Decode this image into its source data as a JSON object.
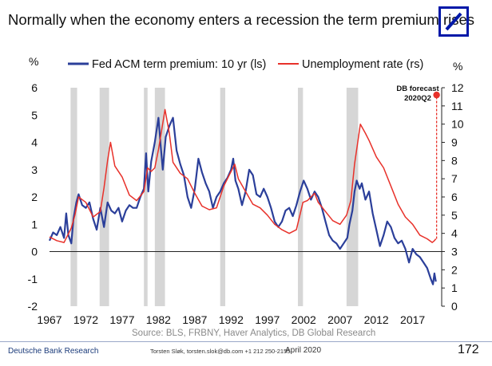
{
  "header": {
    "title": "Normally when the economy enters a recession the term premium rises"
  },
  "chart_data": {
    "type": "line",
    "left_axis": {
      "label": "%",
      "min": -2,
      "max": 6,
      "ticks": [
        "6",
        "5",
        "4",
        "3",
        "2",
        "1",
        "0",
        "-1",
        "-2"
      ]
    },
    "right_axis": {
      "label": "%",
      "min": 0,
      "max": 12,
      "ticks": [
        "12",
        "11",
        "10",
        "9",
        "8",
        "7",
        "6",
        "5",
        "4",
        "3",
        "2",
        "1",
        "0"
      ]
    },
    "x_axis": {
      "min": 1967,
      "max": 2021,
      "ticks": [
        "1967",
        "1972",
        "1977",
        "1982",
        "1987",
        "1992",
        "1997",
        "2002",
        "2007",
        "2012",
        "2017"
      ]
    },
    "recessions": [
      [
        1969.9,
        1970.8
      ],
      [
        1973.9,
        1975.2
      ],
      [
        1980.0,
        1980.5
      ],
      [
        1981.5,
        1982.9
      ],
      [
        1990.5,
        1991.2
      ],
      [
        2001.2,
        2001.9
      ],
      [
        2007.9,
        2009.5
      ]
    ],
    "series": [
      {
        "name": "Fed ACM term premium: 10 yr (ls)",
        "axis": "left",
        "color": "#2b3f9a",
        "points": [
          [
            1967,
            0.4
          ],
          [
            1967.5,
            0.7
          ],
          [
            1968,
            0.6
          ],
          [
            1968.5,
            0.9
          ],
          [
            1969,
            0.5
          ],
          [
            1969.3,
            1.4
          ],
          [
            1969.6,
            0.6
          ],
          [
            1970,
            0.3
          ],
          [
            1970.3,
            1.2
          ],
          [
            1970.7,
            1.8
          ],
          [
            1971,
            2.1
          ],
          [
            1971.5,
            1.7
          ],
          [
            1972,
            1.6
          ],
          [
            1972.5,
            1.8
          ],
          [
            1973,
            1.2
          ],
          [
            1973.5,
            0.8
          ],
          [
            1974,
            1.6
          ],
          [
            1974.5,
            0.9
          ],
          [
            1975,
            1.8
          ],
          [
            1975.5,
            1.5
          ],
          [
            1976,
            1.4
          ],
          [
            1976.5,
            1.6
          ],
          [
            1977,
            1.1
          ],
          [
            1977.5,
            1.5
          ],
          [
            1978,
            1.7
          ],
          [
            1978.5,
            1.6
          ],
          [
            1979,
            1.6
          ],
          [
            1979.5,
            2.0
          ],
          [
            1980,
            2.3
          ],
          [
            1980.3,
            3.6
          ],
          [
            1980.6,
            2.2
          ],
          [
            1981,
            3.3
          ],
          [
            1981.5,
            4.0
          ],
          [
            1982,
            4.9
          ],
          [
            1982.3,
            3.9
          ],
          [
            1982.6,
            3.0
          ],
          [
            1983,
            4.2
          ],
          [
            1983.5,
            4.6
          ],
          [
            1984,
            4.9
          ],
          [
            1984.5,
            3.7
          ],
          [
            1985,
            3.2
          ],
          [
            1985.5,
            2.8
          ],
          [
            1986,
            2.0
          ],
          [
            1986.5,
            1.6
          ],
          [
            1987,
            2.3
          ],
          [
            1987.5,
            3.4
          ],
          [
            1988,
            2.9
          ],
          [
            1988.5,
            2.5
          ],
          [
            1989,
            2.2
          ],
          [
            1989.5,
            1.6
          ],
          [
            1990,
            2.0
          ],
          [
            1990.5,
            2.2
          ],
          [
            1991,
            2.5
          ],
          [
            1991.5,
            2.7
          ],
          [
            1992,
            3.0
          ],
          [
            1992.3,
            3.4
          ],
          [
            1992.6,
            2.6
          ],
          [
            1993,
            2.3
          ],
          [
            1993.5,
            1.7
          ],
          [
            1994,
            2.2
          ],
          [
            1994.5,
            3.0
          ],
          [
            1995,
            2.8
          ],
          [
            1995.5,
            2.1
          ],
          [
            1996,
            2.0
          ],
          [
            1996.5,
            2.3
          ],
          [
            1997,
            2.0
          ],
          [
            1997.5,
            1.6
          ],
          [
            1998,
            1.1
          ],
          [
            1998.5,
            0.9
          ],
          [
            1999,
            1.1
          ],
          [
            1999.5,
            1.5
          ],
          [
            2000,
            1.6
          ],
          [
            2000.5,
            1.3
          ],
          [
            2001,
            1.7
          ],
          [
            2001.5,
            2.2
          ],
          [
            2002,
            2.6
          ],
          [
            2002.5,
            2.3
          ],
          [
            2003,
            1.9
          ],
          [
            2003.5,
            2.2
          ],
          [
            2004,
            2.0
          ],
          [
            2004.5,
            1.6
          ],
          [
            2005,
            1.1
          ],
          [
            2005.5,
            0.6
          ],
          [
            2006,
            0.4
          ],
          [
            2006.5,
            0.3
          ],
          [
            2007,
            0.1
          ],
          [
            2007.5,
            0.3
          ],
          [
            2008,
            0.5
          ],
          [
            2008.3,
            1.0
          ],
          [
            2008.7,
            1.5
          ],
          [
            2009,
            2.2
          ],
          [
            2009.3,
            2.6
          ],
          [
            2009.7,
            2.3
          ],
          [
            2010,
            2.5
          ],
          [
            2010.5,
            1.9
          ],
          [
            2011,
            2.2
          ],
          [
            2011.5,
            1.4
          ],
          [
            2012,
            0.8
          ],
          [
            2012.5,
            0.2
          ],
          [
            2013,
            0.6
          ],
          [
            2013.5,
            1.1
          ],
          [
            2014,
            0.9
          ],
          [
            2014.5,
            0.5
          ],
          [
            2015,
            0.3
          ],
          [
            2015.5,
            0.4
          ],
          [
            2016,
            0.1
          ],
          [
            2016.5,
            -0.4
          ],
          [
            2017,
            0.1
          ],
          [
            2017.5,
            -0.1
          ],
          [
            2018,
            -0.2
          ],
          [
            2018.5,
            -0.4
          ],
          [
            2019,
            -0.6
          ],
          [
            2019.5,
            -1.0
          ],
          [
            2019.8,
            -1.2
          ],
          [
            2020.0,
            -0.8
          ],
          [
            2020.2,
            -1.1
          ]
        ]
      },
      {
        "name": "Unemployment rate (rs)",
        "axis": "right",
        "color": "#e8312a",
        "points": [
          [
            1967,
            3.8
          ],
          [
            1968,
            3.6
          ],
          [
            1969,
            3.5
          ],
          [
            1970,
            4.3
          ],
          [
            1970.5,
            5.0
          ],
          [
            1971,
            6.0
          ],
          [
            1972,
            5.7
          ],
          [
            1973,
            4.9
          ],
          [
            1974,
            5.2
          ],
          [
            1974.5,
            6.5
          ],
          [
            1975,
            8.0
          ],
          [
            1975.4,
            9.0
          ],
          [
            1976,
            7.7
          ],
          [
            1977,
            7.1
          ],
          [
            1978,
            6.1
          ],
          [
            1979,
            5.8
          ],
          [
            1980,
            6.3
          ],
          [
            1980.5,
            7.6
          ],
          [
            1981,
            7.4
          ],
          [
            1981.5,
            7.6
          ],
          [
            1982,
            8.6
          ],
          [
            1982.9,
            10.8
          ],
          [
            1983.5,
            9.5
          ],
          [
            1984,
            7.9
          ],
          [
            1985,
            7.3
          ],
          [
            1986,
            7.0
          ],
          [
            1987,
            6.2
          ],
          [
            1988,
            5.5
          ],
          [
            1989,
            5.3
          ],
          [
            1990,
            5.4
          ],
          [
            1991,
            6.6
          ],
          [
            1992,
            7.4
          ],
          [
            1992.5,
            7.8
          ],
          [
            1993,
            7.0
          ],
          [
            1994,
            6.3
          ],
          [
            1995,
            5.6
          ],
          [
            1996,
            5.4
          ],
          [
            1997,
            5.0
          ],
          [
            1998,
            4.5
          ],
          [
            1999,
            4.2
          ],
          [
            2000,
            4.0
          ],
          [
            2001,
            4.2
          ],
          [
            2001.9,
            5.7
          ],
          [
            2002.5,
            5.8
          ],
          [
            2003.5,
            6.2
          ],
          [
            2004,
            5.7
          ],
          [
            2005,
            5.2
          ],
          [
            2006,
            4.7
          ],
          [
            2007,
            4.5
          ],
          [
            2007.9,
            5.0
          ],
          [
            2008.5,
            5.8
          ],
          [
            2009,
            7.8
          ],
          [
            2009.8,
            10.0
          ],
          [
            2010.5,
            9.5
          ],
          [
            2011,
            9.1
          ],
          [
            2012,
            8.2
          ],
          [
            2013,
            7.6
          ],
          [
            2014,
            6.6
          ],
          [
            2015,
            5.6
          ],
          [
            2016,
            4.9
          ],
          [
            2017,
            4.5
          ],
          [
            2018,
            3.9
          ],
          [
            2019,
            3.7
          ],
          [
            2019.7,
            3.5
          ],
          [
            2020.0,
            3.6
          ],
          [
            2020.2,
            3.7
          ]
        ]
      }
    ],
    "forecast": {
      "label_line1": "DB forecast",
      "label_line2": "2020Q2",
      "x": 2020.3,
      "value": 11.6,
      "color": "#e8312a"
    },
    "legend": {
      "position": "top"
    },
    "grid": false
  },
  "footer": {
    "source": "Source:  BLS, FRBNY, Haver Analytics, DB Global Research",
    "brand": "Deutsche Bank Research",
    "contact": "Torsten Sløk, torsten.slok@db.com  +1 212 250-2155",
    "date": "April 2020",
    "page": "172"
  },
  "colors": {
    "recession_band": "#d6d6d6",
    "logo_blue": "#0018a8"
  }
}
